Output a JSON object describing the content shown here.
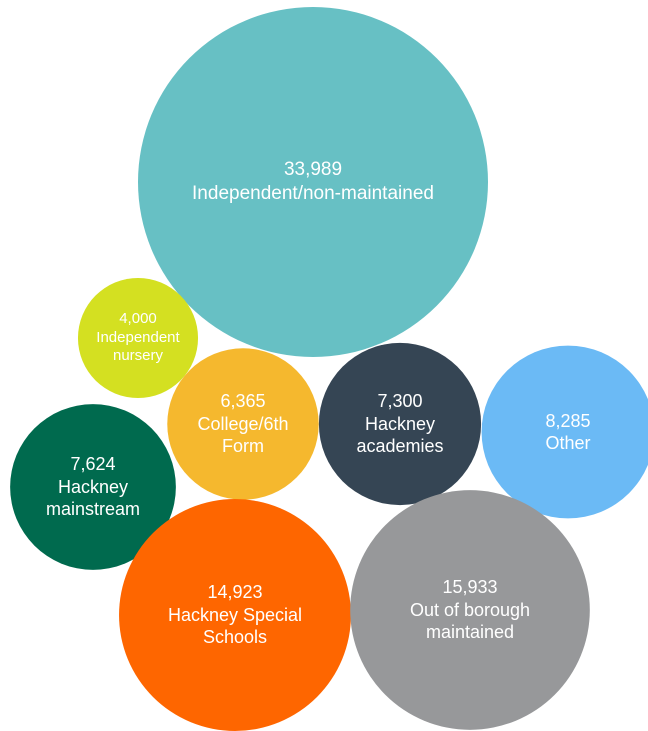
{
  "chart_data": {
    "type": "bubble",
    "categories": [
      "Independent/non-maintained",
      "Independent nursery",
      "College/6th Form",
      "Hackney academies",
      "Other",
      "Hackney mainstream",
      "Hackney Special Schools",
      "Out of borough maintained"
    ],
    "values": [
      33989,
      4000,
      6365,
      7300,
      8285,
      7624,
      14923,
      15933
    ],
    "value_labels": [
      "33,989",
      "4,000",
      "6,365",
      "7,300",
      "8,285",
      "7,624",
      "14,923",
      "15,933"
    ],
    "colors": [
      "#67c0c4",
      "#d4e021",
      "#f5b82e",
      "#354554",
      "#6bbaf5",
      "#006a4e",
      "#fe6600",
      "#97989a"
    ]
  }
}
